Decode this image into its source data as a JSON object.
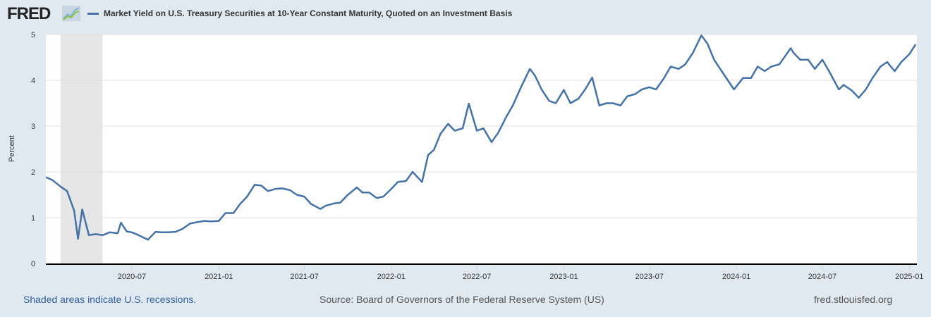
{
  "header": {
    "logo_text": "FRED",
    "legend_label": "Market Yield on U.S. Treasury Securities at 10-Year Constant Maturity, Quoted on an Investment Basis"
  },
  "footer": {
    "recession_note": "Shaded areas indicate U.S. recessions.",
    "source": "Source: Board of Governors of the Federal Reserve System (US)",
    "site": "fred.stlouisfed.org"
  },
  "colors": {
    "series": "#4572a7",
    "recession": "#e6e6e6",
    "background": "#e1e9f0"
  },
  "chart_data": {
    "type": "line",
    "title": "Market Yield on U.S. Treasury Securities at 10-Year Constant Maturity, Quoted on an Investment Basis",
    "xlabel": "",
    "ylabel": "Percent",
    "ylim": [
      0,
      5
    ],
    "xlim": [
      "2020-01-01",
      "2025-01-17"
    ],
    "yticks": [
      "0",
      "1",
      "2",
      "3",
      "4",
      "5"
    ],
    "xticks": [
      "2020-07",
      "2021-01",
      "2021-07",
      "2022-01",
      "2022-07",
      "2023-01",
      "2023-07",
      "2024-01",
      "2024-07",
      "2025-01"
    ],
    "recessions": [
      {
        "start": "2020-02-01",
        "end": "2020-04-30"
      }
    ],
    "grid": true,
    "legend": "top-left",
    "series": [
      {
        "name": "Market Yield on U.S. Treasury Securities at 10-Year Constant Maturity, Quoted on an Investment Basis",
        "x": [
          "2020-01-02",
          "2020-01-15",
          "2020-02-01",
          "2020-02-15",
          "2020-03-01",
          "2020-03-09",
          "2020-03-18",
          "2020-04-01",
          "2020-04-15",
          "2020-05-01",
          "2020-05-15",
          "2020-06-01",
          "2020-06-08",
          "2020-06-20",
          "2020-07-01",
          "2020-07-15",
          "2020-08-04",
          "2020-08-20",
          "2020-09-01",
          "2020-09-15",
          "2020-10-01",
          "2020-10-15",
          "2020-11-01",
          "2020-11-15",
          "2020-12-01",
          "2020-12-15",
          "2021-01-01",
          "2021-01-15",
          "2021-02-01",
          "2021-02-15",
          "2021-03-01",
          "2021-03-18",
          "2021-04-01",
          "2021-04-15",
          "2021-05-01",
          "2021-05-15",
          "2021-06-01",
          "2021-06-15",
          "2021-07-01",
          "2021-07-15",
          "2021-08-04",
          "2021-08-15",
          "2021-09-01",
          "2021-09-15",
          "2021-10-01",
          "2021-10-20",
          "2021-11-01",
          "2021-11-15",
          "2021-12-01",
          "2021-12-15",
          "2022-01-01",
          "2022-01-15",
          "2022-02-01",
          "2022-02-15",
          "2022-03-07",
          "2022-03-20",
          "2022-04-01",
          "2022-04-15",
          "2022-05-01",
          "2022-05-15",
          "2022-06-01",
          "2022-06-14",
          "2022-07-01",
          "2022-07-15",
          "2022-08-01",
          "2022-08-15",
          "2022-09-01",
          "2022-09-15",
          "2022-10-01",
          "2022-10-21",
          "2022-11-01",
          "2022-11-15",
          "2022-12-01",
          "2022-12-15",
          "2023-01-01",
          "2023-01-15",
          "2023-02-01",
          "2023-02-15",
          "2023-03-02",
          "2023-03-17",
          "2023-04-01",
          "2023-04-15",
          "2023-05-01",
          "2023-05-15",
          "2023-06-01",
          "2023-06-15",
          "2023-07-01",
          "2023-07-15",
          "2023-08-01",
          "2023-08-15",
          "2023-09-01",
          "2023-09-15",
          "2023-10-01",
          "2023-10-19",
          "2023-11-01",
          "2023-11-15",
          "2023-12-01",
          "2023-12-27",
          "2024-01-15",
          "2024-02-01",
          "2024-02-15",
          "2024-03-01",
          "2024-03-15",
          "2024-04-01",
          "2024-04-25",
          "2024-05-01",
          "2024-05-15",
          "2024-06-01",
          "2024-06-15",
          "2024-07-01",
          "2024-07-15",
          "2024-08-05",
          "2024-08-15",
          "2024-09-01",
          "2024-09-16",
          "2024-10-01",
          "2024-10-15",
          "2024-11-01",
          "2024-11-15",
          "2024-12-01",
          "2024-12-15",
          "2025-01-01",
          "2025-01-14"
        ],
        "values": [
          1.88,
          1.82,
          1.68,
          1.58,
          1.15,
          0.54,
          1.18,
          0.62,
          0.64,
          0.62,
          0.68,
          0.66,
          0.89,
          0.7,
          0.68,
          0.62,
          0.52,
          0.69,
          0.68,
          0.68,
          0.69,
          0.75,
          0.87,
          0.9,
          0.93,
          0.92,
          0.93,
          1.1,
          1.1,
          1.3,
          1.45,
          1.72,
          1.7,
          1.58,
          1.63,
          1.64,
          1.6,
          1.5,
          1.46,
          1.3,
          1.19,
          1.26,
          1.31,
          1.33,
          1.5,
          1.66,
          1.55,
          1.55,
          1.43,
          1.46,
          1.63,
          1.78,
          1.8,
          2.0,
          1.78,
          2.37,
          2.48,
          2.83,
          3.05,
          2.9,
          2.95,
          3.49,
          2.9,
          2.95,
          2.65,
          2.85,
          3.2,
          3.45,
          3.82,
          4.25,
          4.1,
          3.8,
          3.55,
          3.5,
          3.79,
          3.5,
          3.6,
          3.8,
          4.06,
          3.45,
          3.5,
          3.5,
          3.45,
          3.65,
          3.7,
          3.8,
          3.85,
          3.8,
          4.05,
          4.3,
          4.25,
          4.35,
          4.6,
          4.98,
          4.8,
          4.45,
          4.2,
          3.8,
          4.05,
          4.05,
          4.3,
          4.2,
          4.3,
          4.35,
          4.7,
          4.6,
          4.45,
          4.45,
          4.25,
          4.45,
          4.2,
          3.8,
          3.9,
          3.78,
          3.62,
          3.8,
          4.05,
          4.3,
          4.4,
          4.2,
          4.4,
          4.57,
          4.78
        ]
      }
    ]
  }
}
